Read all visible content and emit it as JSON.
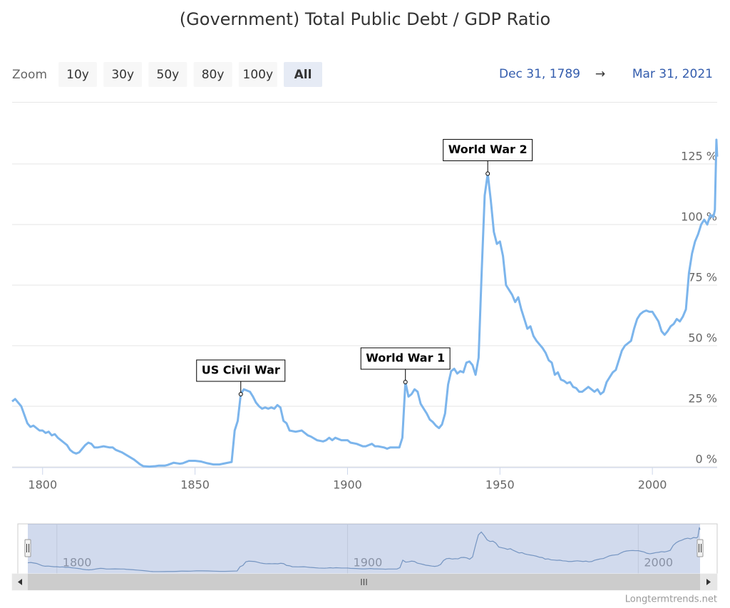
{
  "chart_data": {
    "type": "line",
    "title": "(Government) Total Public Debt / GDP Ratio",
    "range_selector": {
      "label": "Zoom",
      "buttons": [
        "10y",
        "30y",
        "50y",
        "80y",
        "100y",
        "All"
      ],
      "selected": 5
    },
    "range": {
      "from": "Dec 31, 1789",
      "arrow": "→",
      "to": "Mar 31, 2021"
    },
    "credit": "Longtermtrends.net",
    "color": "#7cb5ec",
    "grid": true,
    "xlim": [
      1790,
      2021.25
    ],
    "ylim": [
      0,
      150
    ],
    "xticks": [
      1800,
      1850,
      1900,
      1950,
      2000
    ],
    "yticks": [
      {
        "value": 0,
        "label": "0 %"
      },
      {
        "value": 25,
        "label": "25 %"
      },
      {
        "value": 50,
        "label": "50 %"
      },
      {
        "value": 75,
        "label": "75 %"
      },
      {
        "value": 100,
        "label": "100 %"
      },
      {
        "value": 125,
        "label": "125 %"
      }
    ],
    "navigator_xticks": [
      1800,
      1900,
      2000
    ],
    "annotations": [
      {
        "text": "US Civil War",
        "x": 1865,
        "y": 30
      },
      {
        "text": "World War 1",
        "x": 1919,
        "y": 35
      },
      {
        "text": "World War 2",
        "x": 1946,
        "y": 121
      }
    ],
    "x": [
      1790,
      1791,
      1793,
      1795,
      1796,
      1797,
      1799,
      1800,
      1801,
      1802,
      1803,
      1804,
      1805,
      1806,
      1807,
      1808,
      1809,
      1810,
      1811,
      1812,
      1813,
      1814,
      1815,
      1816,
      1817,
      1818,
      1820,
      1822,
      1823,
      1824,
      1826,
      1828,
      1830,
      1832,
      1833,
      1835,
      1837,
      1838,
      1840,
      1841,
      1843,
      1845,
      1846,
      1847,
      1848,
      1850,
      1852,
      1854,
      1856,
      1858,
      1860,
      1862,
      1863,
      1864,
      1865,
      1866,
      1867,
      1868,
      1869,
      1870,
      1871,
      1872,
      1873,
      1874,
      1875,
      1876,
      1877,
      1878,
      1879,
      1880,
      1881,
      1883,
      1885,
      1886,
      1887,
      1888,
      1890,
      1892,
      1893,
      1894,
      1895,
      1896,
      1898,
      1899,
      1900,
      1901,
      1903,
      1905,
      1906,
      1907,
      1908,
      1909,
      1910,
      1912,
      1913,
      1914,
      1916,
      1917,
      1918,
      1919,
      1920,
      1921,
      1922,
      1923,
      1924,
      1925,
      1926,
      1927,
      1928,
      1929,
      1930,
      1931,
      1932,
      1933,
      1934,
      1935,
      1936,
      1937,
      1938,
      1939,
      1940,
      1941,
      1942,
      1943,
      1944,
      1945,
      1946,
      1947,
      1948,
      1949,
      1950,
      1951,
      1952,
      1953,
      1954,
      1955,
      1956,
      1957,
      1958,
      1959,
      1960,
      1961,
      1962,
      1963,
      1964,
      1965,
      1966,
      1967,
      1968,
      1969,
      1970,
      1971,
      1972,
      1973,
      1974,
      1975,
      1976,
      1977,
      1978,
      1979,
      1980,
      1981,
      1982,
      1983,
      1984,
      1985,
      1986,
      1987,
      1988,
      1989,
      1990,
      1991,
      1992,
      1993,
      1994,
      1995,
      1996,
      1997,
      1998,
      1999,
      2000,
      2001,
      2002,
      2003,
      2004,
      2005,
      2006,
      2007,
      2008,
      2009,
      2010,
      2011,
      2012,
      2013,
      2014,
      2015,
      2016,
      2017,
      2018,
      2019,
      2020,
      2020.5,
      2021,
      2021.25
    ],
    "values": [
      27,
      28,
      25,
      18,
      16.5,
      17,
      15,
      15,
      14,
      14.5,
      13,
      13.5,
      12,
      11,
      10,
      9,
      7,
      6,
      5.5,
      6,
      7.5,
      9,
      10,
      9.5,
      8,
      8,
      8.5,
      8,
      8,
      7,
      6,
      4.5,
      3,
      1,
      0.3,
      0.1,
      0.3,
      0.5,
      0.5,
      0.8,
      1.7,
      1.3,
      1.5,
      2,
      2.5,
      2.5,
      2.2,
      1.5,
      1,
      1,
      1.5,
      2,
      15,
      19,
      30,
      32,
      31.5,
      31,
      29,
      26.5,
      25,
      24,
      24.5,
      24,
      24.5,
      24,
      25.5,
      24.5,
      19,
      18,
      15,
      14.5,
      15,
      14,
      13,
      12.5,
      11,
      10.5,
      11,
      12,
      11,
      12,
      11,
      11,
      11,
      10,
      9.5,
      8.5,
      8.5,
      9,
      9.5,
      8.5,
      8.5,
      8,
      7.5,
      8,
      8,
      8,
      12,
      35,
      29,
      30,
      32,
      31,
      26,
      24,
      22,
      19.5,
      18.5,
      17,
      16,
      17.5,
      22,
      34,
      39.5,
      40.5,
      38.5,
      39.5,
      39,
      43,
      43.5,
      42,
      38,
      45,
      80,
      112,
      121,
      110,
      97,
      92,
      93,
      87,
      75,
      73,
      71,
      68,
      70,
      65,
      61,
      57,
      58,
      54,
      52,
      50.5,
      49,
      47,
      44,
      43,
      38,
      39,
      36,
      35.5,
      34.5,
      35,
      33,
      32.5,
      31,
      31,
      32,
      33,
      32,
      31,
      32,
      30,
      31,
      35,
      37,
      39,
      40,
      44,
      48,
      50,
      51,
      52,
      57,
      61,
      63,
      64,
      64.5,
      64,
      64,
      62,
      60,
      56,
      54.5,
      56,
      58,
      59,
      61,
      60,
      62,
      65,
      80,
      88,
      93,
      96,
      100,
      102,
      100,
      104,
      103,
      106,
      135,
      128
    ]
  }
}
